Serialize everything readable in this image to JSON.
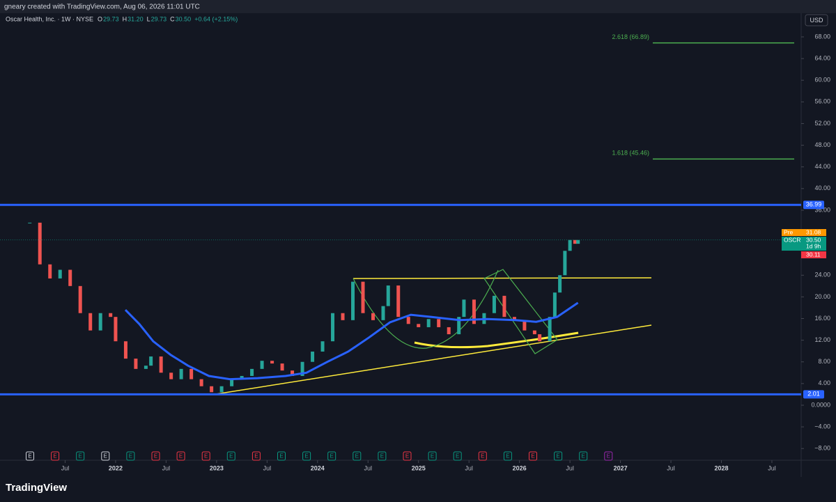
{
  "chart_data": {
    "type": "candlestick",
    "author_line": "gneary created with TradingView.com, Aug 06, 2026 11:01 UTC",
    "symbol": "Oscar Health, Inc. · 1W · NYSE",
    "ohlc": [
      {
        "key": "O",
        "value": "29.73"
      },
      {
        "key": "H",
        "value": "31.20"
      },
      {
        "key": "L",
        "value": "29.73"
      },
      {
        "key": "C",
        "value": "30.50"
      }
    ],
    "change": "+0.64 (+2.15%)",
    "currency": "USD",
    "watermark": "TradingView",
    "up_color": "#26a69a",
    "down_color": "#ef5350",
    "xlim": [
      2020.855,
      2028.79
    ],
    "ylim": [
      -10.03,
      72.24
    ],
    "xticks": [
      {
        "value": 2021.5,
        "label": "Jul"
      },
      {
        "value": 2022,
        "label": "2022"
      },
      {
        "value": 2022.5,
        "label": "Jul"
      },
      {
        "value": 2023,
        "label": "2023"
      },
      {
        "value": 2023.5,
        "label": "Jul"
      },
      {
        "value": 2024,
        "label": "2024"
      },
      {
        "value": 2024.5,
        "label": "Jul"
      },
      {
        "value": 2025,
        "label": "2025"
      },
      {
        "value": 2025.5,
        "label": "Jul"
      },
      {
        "value": 2026,
        "label": "2026"
      },
      {
        "value": 2026.5,
        "label": "Jul"
      },
      {
        "value": 2027,
        "label": "2027"
      },
      {
        "value": 2027.5,
        "label": "Jul"
      },
      {
        "value": 2028,
        "label": "2028"
      },
      {
        "value": 2028.5,
        "label": "Jul"
      }
    ],
    "yticks": [
      {
        "value": 68,
        "label": "68.00"
      },
      {
        "value": 64,
        "label": "64.00"
      },
      {
        "value": 60,
        "label": "60.00"
      },
      {
        "value": 56,
        "label": "56.00"
      },
      {
        "value": 52,
        "label": "52.00"
      },
      {
        "value": 48,
        "label": "48.00"
      },
      {
        "value": 44,
        "label": "44.00"
      },
      {
        "value": 40,
        "label": "40.00"
      },
      {
        "value": 36,
        "label": "36.00"
      },
      {
        "value": 24,
        "label": "24.00"
      },
      {
        "value": 20,
        "label": "20.00"
      },
      {
        "value": 16,
        "label": "16.00"
      },
      {
        "value": 12,
        "label": "12.00"
      },
      {
        "value": 8,
        "label": "8.00"
      },
      {
        "value": 4,
        "label": "4.00"
      },
      {
        "value": 0,
        "label": "0.0000"
      },
      {
        "value": -4,
        "label": "−4.00"
      },
      {
        "value": -8,
        "label": "−8.00"
      }
    ],
    "x": [
      2021.15,
      2021.25,
      2021.35,
      2021.45,
      2021.55,
      2021.65,
      2021.75,
      2021.85,
      2021.95,
      2022.0,
      2022.1,
      2022.2,
      2022.3,
      2022.35,
      2022.45,
      2022.55,
      2022.65,
      2022.75,
      2022.85,
      2022.95,
      2023.05,
      2023.15,
      2023.25,
      2023.35,
      2023.45,
      2023.55,
      2023.65,
      2023.75,
      2023.85,
      2023.95,
      2024.05,
      2024.15,
      2024.25,
      2024.35,
      2024.45,
      2024.55,
      2024.65,
      2024.7,
      2024.8,
      2024.9,
      2025.0,
      2025.1,
      2025.2,
      2025.3,
      2025.4,
      2025.45,
      2025.55,
      2025.65,
      2025.75,
      2025.85,
      2025.95,
      2026.05,
      2026.15,
      2026.2,
      2026.3,
      2026.35,
      2026.4,
      2026.45,
      2026.5,
      2026.55,
      2026.58
    ],
    "values": [
      33.7,
      26,
      23.4,
      25,
      22,
      17,
      13.8,
      17,
      16.3,
      11.8,
      8.6,
      6.7,
      7.3,
      9,
      6,
      4.8,
      6.7,
      4.8,
      3.5,
      2.4,
      3.5,
      4.8,
      5.4,
      6.7,
      8.2,
      7.7,
      6.4,
      5.4,
      8,
      9.9,
      11.8,
      17,
      15.7,
      22.8,
      17,
      15.7,
      18.3,
      22.1,
      16.3,
      15,
      14.4,
      15.9,
      14.4,
      13.1,
      16.3,
      19.5,
      15,
      17,
      20.2,
      16.3,
      15.7,
      13.8,
      13.1,
      11.8,
      16.3,
      20.8,
      24,
      28.5,
      30.5,
      29.8,
      30.5
    ],
    "ma": {
      "color": "#2962ff",
      "x": [
        2022.097,
        2022.234,
        2022.372,
        2022.545,
        2022.717,
        2022.924,
        2023.131,
        2023.407,
        2023.683,
        2023.89,
        2024.097,
        2024.303,
        2024.51,
        2024.717,
        2024.924,
        2025.131,
        2025.407,
        2025.683,
        2025.959,
        2026.166,
        2026.372,
        2026.579
      ],
      "values": [
        17.6,
        15,
        11.8,
        9.3,
        7.3,
        5.4,
        4.8,
        5,
        5.4,
        6,
        8,
        9.9,
        12.5,
        15.3,
        16.7,
        16.3,
        15.7,
        15.9,
        15.7,
        15.4,
        16.3,
        18.9
      ]
    },
    "levels": [
      {
        "value": 36.99,
        "color": "#2962ff"
      },
      {
        "value": 2.01,
        "color": "#2962ff"
      }
    ],
    "fibs": [
      {
        "label": "2.618 (66.89)",
        "value": 66.89,
        "color": "#4caf50"
      },
      {
        "label": "1.618 (45.46)",
        "value": 45.46,
        "color": "#4caf50"
      }
    ],
    "price_tags": [
      {
        "name": "Pre",
        "value": 31.08,
        "color": "#ff9800"
      },
      {
        "name": "OSCR",
        "value": 30.5,
        "label": "30.50",
        "extra": "1d 9h",
        "color": "#089981"
      },
      {
        "value": 30.11,
        "color": "#f23645"
      }
    ],
    "events": [
      {
        "label": "E",
        "color": "#d1d4dc"
      },
      {
        "label": "E",
        "color": "#f23645"
      },
      {
        "label": "E",
        "color": "#089981"
      },
      {
        "label": "E",
        "color": "#d1d4dc"
      },
      {
        "label": "E",
        "color": "#089981"
      },
      {
        "label": "E",
        "color": "#f23645"
      },
      {
        "label": "E",
        "color": "#f23645"
      },
      {
        "label": "E",
        "color": "#f23645"
      },
      {
        "label": "E",
        "color": "#089981"
      },
      {
        "label": "E",
        "color": "#f23645"
      },
      {
        "label": "E",
        "color": "#089981"
      },
      {
        "label": "E",
        "color": "#089981"
      },
      {
        "label": "E",
        "color": "#089981"
      },
      {
        "label": "E",
        "color": "#089981"
      },
      {
        "label": "E",
        "color": "#089981"
      },
      {
        "label": "E",
        "color": "#f23645"
      },
      {
        "label": "E",
        "color": "#089981"
      },
      {
        "label": "E",
        "color": "#089981"
      },
      {
        "label": "E",
        "color": "#f23645"
      },
      {
        "label": "E",
        "color": "#089981"
      },
      {
        "label": "E",
        "color": "#f23645"
      },
      {
        "label": "E",
        "color": "#089981"
      },
      {
        "label": "E",
        "color": "#089981"
      },
      {
        "label": "E",
        "color": "#9c27b0"
      }
    ]
  }
}
